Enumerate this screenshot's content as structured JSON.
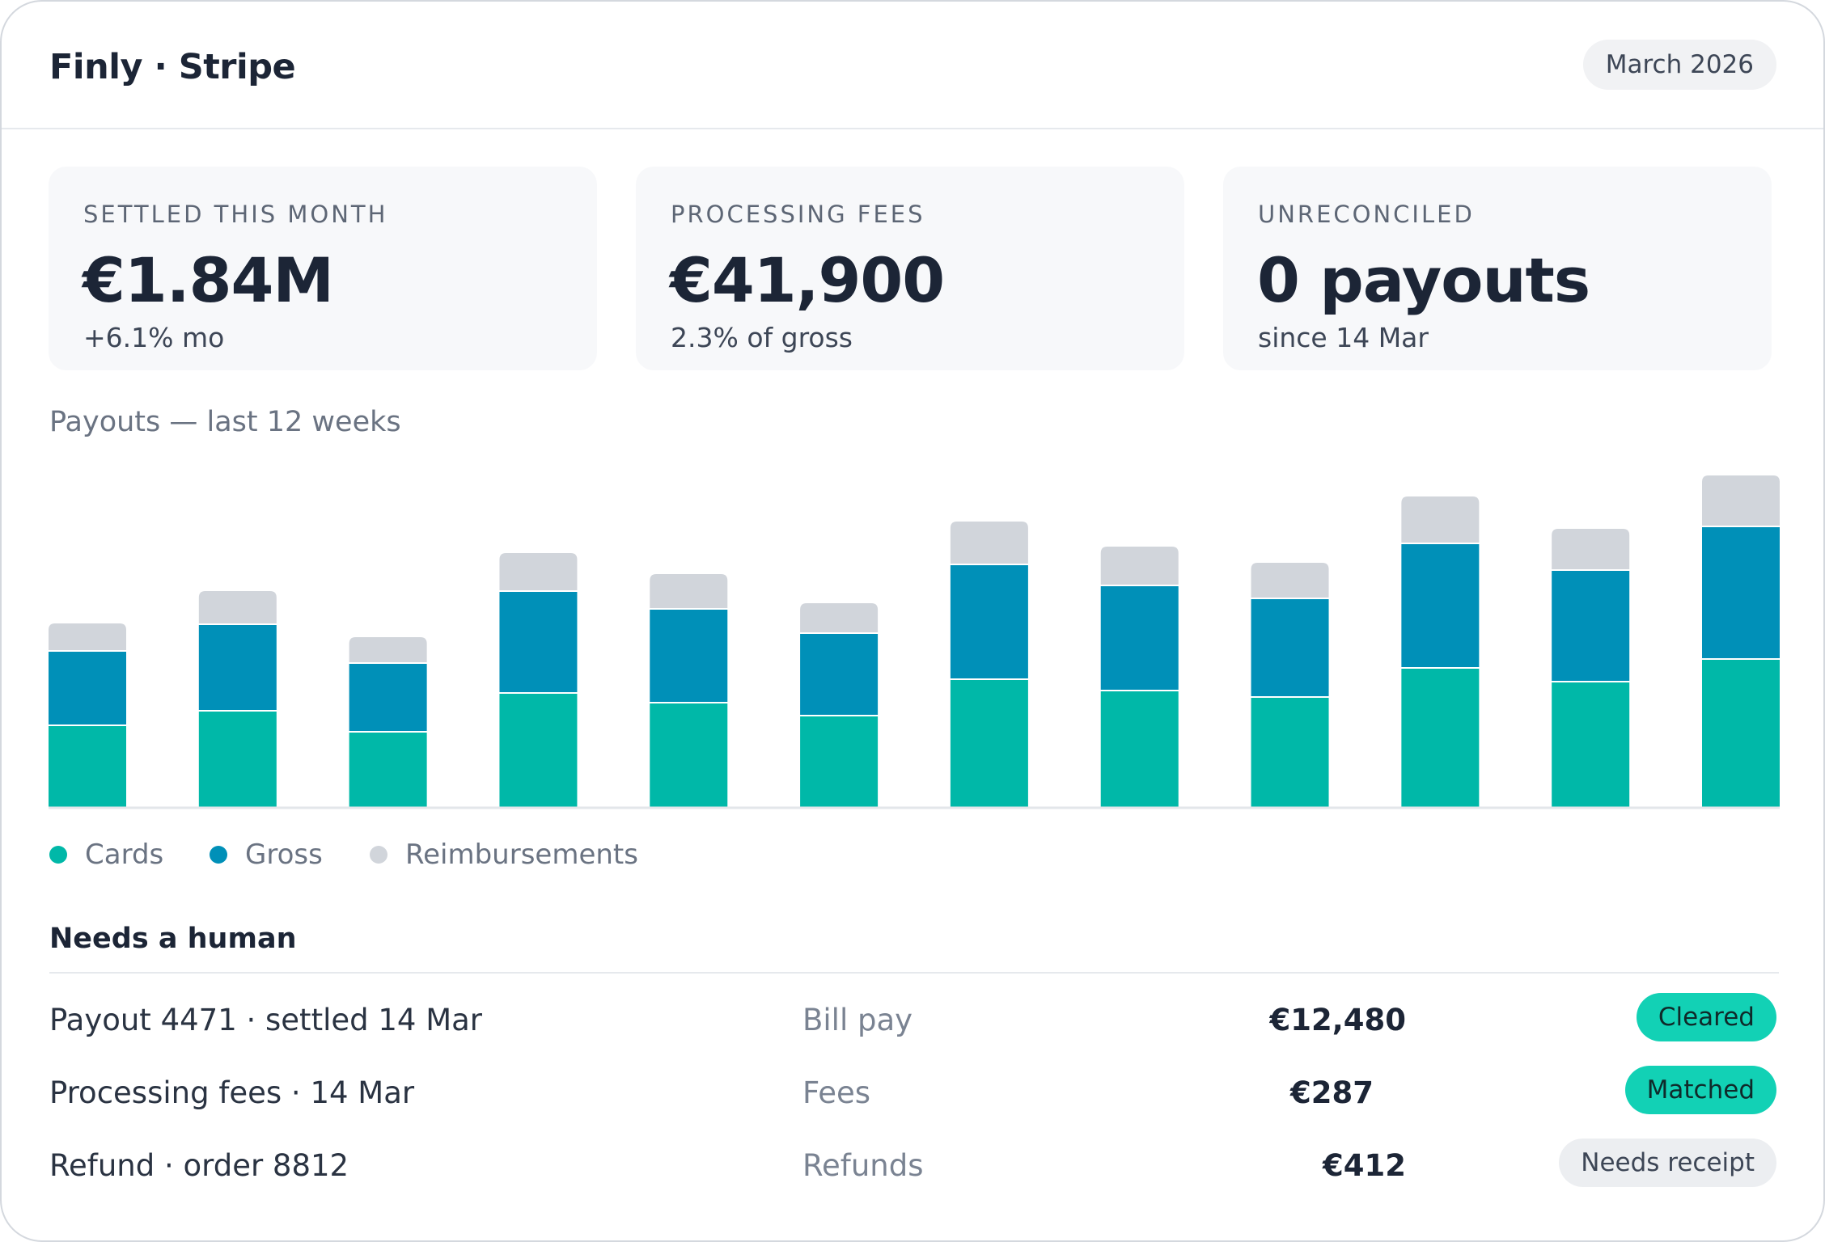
{
  "header": {
    "title": "Finly · Stripe",
    "period": "March 2026"
  },
  "kpis": [
    {
      "label": "SETTLED THIS MONTH",
      "value": "€1.84M",
      "sub": "+6.1% mo"
    },
    {
      "label": "PROCESSING FEES",
      "value": "€41,900",
      "sub": "2.3% of gross"
    },
    {
      "label": "UNRECONCILED",
      "value": "0 payouts",
      "sub": "since 14 Mar"
    }
  ],
  "chart": {
    "title": "Payouts — last 12 weeks"
  },
  "chart_data": {
    "type": "bar",
    "stacked": true,
    "categories": [
      "",
      "",
      "",
      "",
      "",
      "",
      "",
      "",
      "",
      "",
      "",
      ""
    ],
    "series": [
      {
        "name": "Cards",
        "color": "#00b8a8",
        "values": [
          100,
          118,
          92,
          140,
          128,
          112,
          157,
          143,
          135,
          171,
          154,
          182
        ]
      },
      {
        "name": "Gross",
        "color": "#0090b8",
        "values": [
          90,
          105,
          83,
          124,
          114,
          100,
          140,
          128,
          120,
          152,
          136,
          162
        ]
      },
      {
        "name": "Reimbursements",
        "color": "#d1d5db",
        "values": [
          33,
          40,
          31,
          46,
          42,
          36,
          52,
          47,
          43,
          57,
          50,
          62
        ]
      }
    ],
    "ylim": [
      0,
      410
    ],
    "grid": false,
    "legend": "bottom-left"
  },
  "legend": {
    "cards": "Cards",
    "gross": "Gross",
    "reimbursements": "Reimbursements"
  },
  "review": {
    "title": "Needs a human",
    "rows": [
      {
        "desc": "Payout 4471 · settled 14 Mar",
        "category": "Bill pay",
        "amount": "€12,480",
        "status": "Cleared"
      },
      {
        "desc": "Processing fees · 14 Mar",
        "category": "Fees",
        "amount": "€287",
        "status": "Matched"
      },
      {
        "desc": "Refund · order 8812",
        "category": "Refunds",
        "amount": "€412",
        "status": "Needs receipt"
      }
    ]
  }
}
